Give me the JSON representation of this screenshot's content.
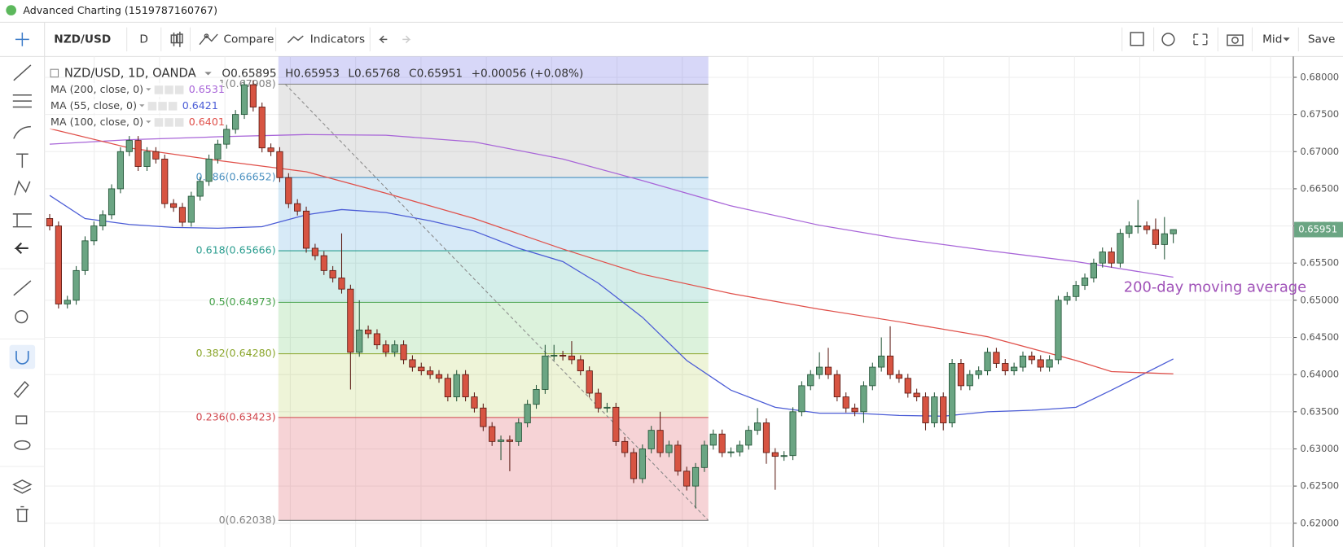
{
  "window": {
    "title": "Advanced Charting (1519787160767)"
  },
  "toolbar": {
    "symbol": "NZD/USD",
    "interval": "D",
    "compare": "Compare",
    "indicators": "Indicators",
    "price_type": "Mid",
    "save": "Save"
  },
  "chart_data": {
    "type": "candlestick",
    "legend_title": "NZD/USD, 1D, OANDA",
    "ohlc_letters": [
      "O",
      "H",
      "L",
      "C"
    ],
    "ohlc_header": {
      "open": 0.65895,
      "high": 0.65953,
      "low": 0.65768,
      "close": 0.65951,
      "change": "+0.00056 (+0.08%)"
    },
    "up_color": "#6ba583",
    "down_color": "#d75442",
    "open": [
      0.661,
      0.66,
      0.6495,
      0.65,
      0.654,
      0.658,
      0.66,
      0.6615,
      0.665,
      0.67,
      0.6715,
      0.668,
      0.67,
      0.669,
      0.663,
      0.6625,
      0.6605,
      0.664,
      0.666,
      0.669,
      0.671,
      0.673,
      0.675,
      0.679,
      0.676,
      0.6705,
      0.67,
      0.6665,
      0.663,
      0.662,
      0.657,
      0.656,
      0.654,
      0.653,
      0.6515,
      0.643,
      0.646,
      0.6455,
      0.644,
      0.643,
      0.644,
      0.642,
      0.641,
      0.6405,
      0.64,
      0.6395,
      0.637,
      0.64,
      0.637,
      0.6355,
      0.633,
      0.631,
      0.6312,
      0.631,
      0.6335,
      0.636,
      0.638,
      0.6425,
      0.6426,
      0.6425,
      0.642,
      0.6405,
      0.6375,
      0.6355,
      0.6356,
      0.631,
      0.6295,
      0.626,
      0.63,
      0.6325,
      0.6295,
      0.6305,
      0.627,
      0.625,
      0.6275,
      0.6305,
      0.632,
      0.6295,
      0.6296,
      0.6305,
      0.6325,
      0.6335,
      0.6295,
      0.629,
      0.6291,
      0.635,
      0.6385,
      0.64,
      0.641,
      0.64,
      0.637,
      0.6355,
      0.635,
      0.6385,
      0.641,
      0.6425,
      0.64,
      0.6395,
      0.6375,
      0.637,
      0.6335,
      0.637,
      0.6335,
      0.6415,
      0.6385,
      0.64,
      0.6405,
      0.643,
      0.6415,
      0.6405,
      0.641,
      0.6425,
      0.642,
      0.641,
      0.642,
      0.65,
      0.6505,
      0.652,
      0.653,
      0.655,
      0.6565,
      0.655,
      0.659,
      0.66,
      0.66,
      0.6595,
      0.6575,
      0.65895
    ],
    "high": [
      0.6616,
      0.6606,
      0.6506,
      0.6546,
      0.6586,
      0.6606,
      0.6621,
      0.6656,
      0.6706,
      0.6721,
      0.6721,
      0.6706,
      0.6706,
      0.6696,
      0.6636,
      0.6631,
      0.6646,
      0.6666,
      0.6696,
      0.6716,
      0.6736,
      0.6756,
      0.6796,
      0.6796,
      0.6766,
      0.6711,
      0.6706,
      0.6671,
      0.6636,
      0.6626,
      0.6576,
      0.6566,
      0.6546,
      0.659,
      0.6521,
      0.65,
      0.6466,
      0.6461,
      0.6446,
      0.6446,
      0.6446,
      0.6426,
      0.6416,
      0.6411,
      0.6406,
      0.6401,
      0.6406,
      0.6406,
      0.6376,
      0.6361,
      0.6336,
      0.6318,
      0.6318,
      0.6341,
      0.6366,
      0.6386,
      0.644,
      0.644,
      0.6432,
      0.6445,
      0.6426,
      0.6411,
      0.6381,
      0.6362,
      0.6362,
      0.6316,
      0.6301,
      0.6306,
      0.6331,
      0.635,
      0.6311,
      0.6311,
      0.6276,
      0.6281,
      0.6311,
      0.6326,
      0.6326,
      0.6302,
      0.6311,
      0.6331,
      0.6355,
      0.6341,
      0.6301,
      0.6297,
      0.6356,
      0.6391,
      0.6406,
      0.643,
      0.6436,
      0.6406,
      0.6376,
      0.6361,
      0.6391,
      0.6416,
      0.645,
      0.6465,
      0.6406,
      0.6401,
      0.6381,
      0.6376,
      0.6376,
      0.6376,
      0.6421,
      0.6421,
      0.6406,
      0.6411,
      0.6436,
      0.6436,
      0.6421,
      0.6416,
      0.6431,
      0.6431,
      0.6426,
      0.6426,
      0.6506,
      0.6511,
      0.6526,
      0.6536,
      0.6556,
      0.6571,
      0.6571,
      0.6596,
      0.6606,
      0.6635,
      0.6606,
      0.661,
      0.6612,
      0.65953
    ],
    "low": [
      0.6594,
      0.6489,
      0.6489,
      0.6494,
      0.6534,
      0.6574,
      0.6594,
      0.6609,
      0.6644,
      0.6694,
      0.6674,
      0.6674,
      0.6684,
      0.6624,
      0.6619,
      0.6599,
      0.6599,
      0.6634,
      0.6654,
      0.6684,
      0.6704,
      0.6724,
      0.6744,
      0.6754,
      0.6699,
      0.6694,
      0.6659,
      0.6624,
      0.6614,
      0.6564,
      0.6554,
      0.6534,
      0.6524,
      0.6509,
      0.638,
      0.6424,
      0.6449,
      0.6434,
      0.6424,
      0.6424,
      0.6414,
      0.6404,
      0.6399,
      0.6394,
      0.6389,
      0.6364,
      0.6364,
      0.6364,
      0.6349,
      0.6324,
      0.6304,
      0.6285,
      0.627,
      0.6304,
      0.6329,
      0.6354,
      0.6374,
      0.6419,
      0.6419,
      0.6414,
      0.6399,
      0.6369,
      0.6349,
      0.6349,
      0.6304,
      0.6289,
      0.6254,
      0.6254,
      0.6294,
      0.6289,
      0.6289,
      0.6264,
      0.6244,
      0.622,
      0.6269,
      0.6299,
      0.6289,
      0.6289,
      0.629,
      0.6299,
      0.6319,
      0.628,
      0.6245,
      0.6284,
      0.6285,
      0.6344,
      0.6379,
      0.6394,
      0.6394,
      0.6364,
      0.6349,
      0.6344,
      0.6335,
      0.6379,
      0.6404,
      0.6394,
      0.6389,
      0.6369,
      0.6364,
      0.6325,
      0.6329,
      0.6325,
      0.6329,
      0.6379,
      0.6379,
      0.6394,
      0.6399,
      0.6409,
      0.6399,
      0.6399,
      0.6404,
      0.6414,
      0.6404,
      0.6404,
      0.6414,
      0.6494,
      0.6499,
      0.6514,
      0.6524,
      0.6544,
      0.6544,
      0.6544,
      0.6584,
      0.659,
      0.6589,
      0.6569,
      0.6555,
      0.65768
    ],
    "close": [
      0.66,
      0.6495,
      0.65,
      0.654,
      0.658,
      0.66,
      0.6615,
      0.665,
      0.67,
      0.6715,
      0.668,
      0.67,
      0.669,
      0.663,
      0.6625,
      0.6605,
      0.664,
      0.666,
      0.669,
      0.671,
      0.673,
      0.675,
      0.679,
      0.676,
      0.6705,
      0.67,
      0.6665,
      0.663,
      0.662,
      0.657,
      0.656,
      0.654,
      0.653,
      0.6515,
      0.643,
      0.646,
      0.6455,
      0.644,
      0.643,
      0.644,
      0.642,
      0.641,
      0.6405,
      0.64,
      0.6395,
      0.637,
      0.64,
      0.637,
      0.6355,
      0.633,
      0.631,
      0.6312,
      0.631,
      0.6335,
      0.636,
      0.638,
      0.6425,
      0.6426,
      0.6425,
      0.642,
      0.6405,
      0.6375,
      0.6355,
      0.6356,
      0.631,
      0.6295,
      0.626,
      0.63,
      0.6325,
      0.6295,
      0.6305,
      0.627,
      0.625,
      0.6275,
      0.6305,
      0.632,
      0.6295,
      0.6296,
      0.6305,
      0.6325,
      0.6335,
      0.6295,
      0.629,
      0.6291,
      0.635,
      0.6385,
      0.64,
      0.641,
      0.64,
      0.637,
      0.6355,
      0.635,
      0.6385,
      0.641,
      0.6425,
      0.64,
      0.6395,
      0.6375,
      0.637,
      0.6335,
      0.637,
      0.6335,
      0.6415,
      0.6385,
      0.64,
      0.6405,
      0.643,
      0.6415,
      0.6405,
      0.641,
      0.6425,
      0.642,
      0.641,
      0.642,
      0.65,
      0.6505,
      0.652,
      0.653,
      0.655,
      0.6565,
      0.655,
      0.659,
      0.66,
      0.66,
      0.6595,
      0.6575,
      0.65895,
      0.65951
    ],
    "moving_averages": [
      {
        "name": "MA (200, close, 0)",
        "last": 0.6531,
        "color": "#a865d8",
        "x": [
          0,
          9,
          19,
          29,
          38,
          48,
          58,
          67,
          77,
          87,
          96,
          106,
          116,
          127
        ],
        "values": [
          0.671,
          0.6716,
          0.672,
          0.6723,
          0.6722,
          0.6713,
          0.669,
          0.6661,
          0.6627,
          0.6601,
          0.6583,
          0.6567,
          0.6552,
          0.6531
        ]
      },
      {
        "name": "MA (55, close, 0)",
        "last": 0.6421,
        "color": "#4b5cd6",
        "x": [
          0,
          4,
          9,
          14,
          19,
          24,
          29,
          33,
          38,
          43,
          48,
          53,
          58,
          62,
          67,
          72,
          77,
          82,
          87,
          91,
          96,
          101,
          106,
          111,
          116,
          120,
          127
        ],
        "values": [
          0.6641,
          0.661,
          0.6602,
          0.6598,
          0.6597,
          0.6599,
          0.6615,
          0.6622,
          0.6618,
          0.6607,
          0.6593,
          0.657,
          0.6552,
          0.6523,
          0.6477,
          0.6419,
          0.6379,
          0.6356,
          0.6348,
          0.6348,
          0.6345,
          0.6344,
          0.635,
          0.6352,
          0.6356,
          0.6379,
          0.6421
        ]
      },
      {
        "name": "MA (100, close, 0)",
        "last": 0.6401,
        "color": "#e0504a",
        "x": [
          0,
          9,
          19,
          29,
          38,
          48,
          58,
          67,
          77,
          87,
          96,
          106,
          116,
          120,
          127
        ],
        "values": [
          0.6731,
          0.6705,
          0.6688,
          0.6673,
          0.6644,
          0.661,
          0.6569,
          0.6535,
          0.6509,
          0.6488,
          0.6471,
          0.6451,
          0.6419,
          0.6404,
          0.6401
        ]
      }
    ],
    "fibonacci": [
      {
        "label": "1(0.67908)",
        "value": 0.67908,
        "color": "#808080"
      },
      {
        "label": "0.786(0.66652)",
        "value": 0.66652,
        "color": "#4a90c0"
      },
      {
        "label": "0.618(0.65666)",
        "value": 0.65666,
        "color": "#2a9d8f"
      },
      {
        "label": "0.5(0.64973)",
        "value": 0.64973,
        "color": "#43a047"
      },
      {
        "label": "0.382(0.64280)",
        "value": 0.6428,
        "color": "#8aa52a"
      },
      {
        "label": "0.236(0.63423)",
        "value": 0.63423,
        "color": "#d0454c"
      },
      {
        "label": "0(0.62038)",
        "value": 0.62038,
        "color": "#808080"
      }
    ],
    "annotation": {
      "text": "200-day moving average",
      "color": "#a052b8"
    },
    "ylim": [
      0.6168,
      0.6828
    ],
    "yticks": [
      {
        "value": 0.68,
        "label": "0.68000"
      },
      {
        "value": 0.675,
        "label": "0.67500"
      },
      {
        "value": 0.67,
        "label": "0.67000"
      },
      {
        "value": 0.665,
        "label": "0.66500"
      },
      {
        "value": 0.66,
        "label": "0.66000"
      },
      {
        "value": 0.655,
        "label": "0.65500"
      },
      {
        "value": 0.65,
        "label": "0.65000"
      },
      {
        "value": 0.645,
        "label": "0.64500"
      },
      {
        "value": 0.64,
        "label": "0.64000"
      },
      {
        "value": 0.635,
        "label": "0.63500"
      },
      {
        "value": 0.63,
        "label": "0.63000"
      },
      {
        "value": 0.625,
        "label": "0.62500"
      },
      {
        "value": 0.62,
        "label": "0.62000"
      }
    ],
    "grid": true
  }
}
